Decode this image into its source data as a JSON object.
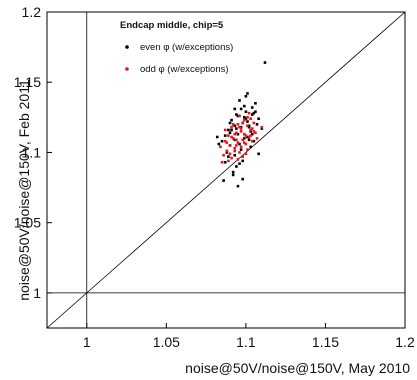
{
  "chart_data": {
    "type": "scatter",
    "xlabel": "noise@50V/noise@150V, May 2010",
    "ylabel": "noise@50V/noise@150V, Feb 2011",
    "xlim": [
      0.975,
      1.2
    ],
    "ylim": [
      0.975,
      1.2
    ],
    "xticks": [
      "1",
      "1.05",
      "1.1",
      "1.15",
      "1.2"
    ],
    "yticks": [
      "1",
      "1.05",
      "1.1",
      "1.15",
      "1.2"
    ],
    "xtick_values": [
      1.0,
      1.05,
      1.1,
      1.15,
      1.2
    ],
    "ytick_values": [
      1.0,
      1.05,
      1.1,
      1.15,
      1.2
    ],
    "legend": {
      "title": "Endcap middle, chip=5",
      "placement": "top-left",
      "entries": [
        {
          "label": "even φ (w/exceptions)",
          "color": "#000000"
        },
        {
          "label": "odd φ (w/exceptions)",
          "color": "#e8141b"
        }
      ]
    },
    "reference_lines": {
      "diagonal": "y = x",
      "vertical": 1.0,
      "horizontal": 1.0
    },
    "series": [
      {
        "color": "#000000",
        "x": [
          1.082,
          1.085,
          1.087,
          1.088,
          1.09,
          1.091,
          1.093,
          1.095,
          1.097,
          1.099,
          1.101,
          1.103,
          1.105,
          1.107,
          1.098,
          1.094,
          1.092,
          1.089,
          1.102,
          1.104,
          1.096,
          1.1,
          1.086,
          1.083,
          1.108,
          1.11,
          1.097,
          1.093,
          1.099,
          1.095,
          1.091,
          1.101,
          1.103,
          1.098,
          1.094,
          1.09,
          1.088,
          1.105,
          1.106,
          1.102,
          1.096,
          1.092,
          1.1,
          1.104,
          1.099,
          1.097,
          1.093,
          1.089,
          1.101,
          1.095,
          1.108,
          1.104,
          1.112,
          1.098,
          1.087,
          1.09,
          1.094,
          1.096,
          1.1,
          1.102,
          1.093,
          1.106
        ],
        "y": [
          1.111,
          1.108,
          1.112,
          1.101,
          1.105,
          1.116,
          1.119,
          1.113,
          1.118,
          1.125,
          1.122,
          1.115,
          1.128,
          1.12,
          1.094,
          1.09,
          1.086,
          1.097,
          1.109,
          1.132,
          1.137,
          1.129,
          1.08,
          1.106,
          1.124,
          1.117,
          1.102,
          1.098,
          1.133,
          1.126,
          1.123,
          1.111,
          1.104,
          1.121,
          1.127,
          1.114,
          1.1,
          1.108,
          1.135,
          1.118,
          1.092,
          1.084,
          1.14,
          1.127,
          1.11,
          1.131,
          1.109,
          1.116,
          1.142,
          1.076,
          1.099,
          1.113,
          1.164,
          1.081,
          1.093,
          1.121,
          1.117,
          1.106,
          1.124,
          1.119,
          1.131,
          1.129
        ]
      },
      {
        "color": "#e8141b",
        "x": [
          1.084,
          1.086,
          1.087,
          1.088,
          1.089,
          1.09,
          1.091,
          1.092,
          1.093,
          1.094,
          1.095,
          1.096,
          1.097,
          1.098,
          1.099,
          1.1,
          1.101,
          1.102,
          1.103,
          1.104,
          1.105,
          1.106,
          1.107,
          1.085,
          1.087,
          1.089,
          1.091,
          1.093,
          1.095,
          1.097,
          1.099,
          1.101,
          1.103,
          1.105,
          1.09,
          1.092,
          1.094,
          1.096,
          1.098,
          1.1,
          1.102,
          1.104,
          1.088,
          1.091,
          1.095,
          1.099,
          1.103,
          1.093,
          1.097,
          1.101,
          1.11,
          1.094,
          1.096,
          1.098,
          1.1
        ],
        "y": [
          1.104,
          1.098,
          1.108,
          1.101,
          1.112,
          1.105,
          1.096,
          1.11,
          1.103,
          1.114,
          1.107,
          1.1,
          1.117,
          1.109,
          1.113,
          1.106,
          1.119,
          1.111,
          1.116,
          1.108,
          1.121,
          1.114,
          1.11,
          1.093,
          1.116,
          1.094,
          1.118,
          1.101,
          1.12,
          1.104,
          1.123,
          1.102,
          1.124,
          1.115,
          1.099,
          1.12,
          1.105,
          1.126,
          1.097,
          1.112,
          1.128,
          1.117,
          1.107,
          1.111,
          1.095,
          1.107,
          1.112,
          1.113,
          1.115,
          1.125,
          1.118,
          1.109,
          1.118,
          1.121,
          1.099
        ]
      }
    ]
  }
}
